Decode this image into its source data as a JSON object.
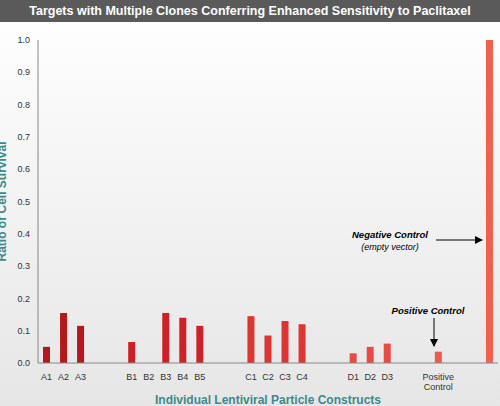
{
  "chart_data": {
    "type": "bar",
    "title": "Targets with Multiple Clones Conferring Enhanced Sensitivity to Paclitaxel",
    "x_label": "Individual Lentiviral Particle Constructs",
    "y_label": "Ratio of Cell Survival",
    "categories": [
      "A1",
      "A2",
      "A3",
      null,
      null,
      "B1",
      "B2",
      "B3",
      "B4",
      "B5",
      null,
      null,
      "C1",
      "C2",
      "C3",
      "C4",
      null,
      null,
      "D1",
      "D2",
      "D3",
      null,
      null,
      "Positive Control",
      null,
      null,
      null
    ],
    "values": [
      0.05,
      0.155,
      0.115,
      null,
      null,
      0.065,
      0,
      0.155,
      0.14,
      0.115,
      null,
      null,
      0.145,
      0.085,
      0.13,
      0.12,
      null,
      null,
      0.03,
      0.05,
      0.06,
      null,
      null,
      0.035,
      null,
      null,
      1.0
    ],
    "colors": [
      "#b3191c",
      "#b3191c",
      "#b3191c",
      null,
      null,
      "#cc2227",
      "#cc2227",
      "#cc2227",
      "#cc2227",
      "#cc2227",
      null,
      null,
      "#dd3434",
      "#dd3434",
      "#dd3434",
      "#dd3434",
      null,
      null,
      "#e84a45",
      "#e84a45",
      "#e84a45",
      null,
      null,
      "#ee5a4c",
      null,
      null,
      "#f0604f"
    ],
    "ylim": [
      0,
      1
    ],
    "yticks": [
      {
        "value": 0,
        "label": "0.0"
      },
      0.1,
      0.2,
      0.3,
      0.4,
      0.5,
      0.6,
      0.7,
      0.8,
      0.9,
      {
        "value": 1,
        "label": "1.0"
      }
    ],
    "grid": false,
    "annotations": [
      {
        "text": "Negative Control",
        "subtext": "(empty vector)"
      },
      {
        "text": "Positive Control"
      }
    ]
  }
}
